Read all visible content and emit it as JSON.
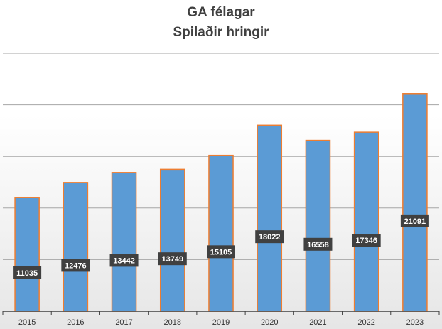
{
  "title_lines": [
    "GA félagar",
    "Spilaðir hringir"
  ],
  "chart_data": {
    "type": "bar",
    "title": "GA félagar Spilaðir hringir",
    "categories": [
      "2015",
      "2016",
      "2017",
      "2018",
      "2019",
      "2020",
      "2021",
      "2022",
      "2023"
    ],
    "values": [
      11035,
      12476,
      13442,
      13749,
      15105,
      18022,
      16558,
      17346,
      21091
    ],
    "xlabel": "",
    "ylabel": "",
    "ylim": [
      0,
      25000
    ],
    "grid": true,
    "legend": "none",
    "colors": {
      "bar_fill": "#5b9bd5",
      "bar_border": "#ed7d31",
      "label_bg": "#404040",
      "label_text": "#ffffff",
      "grid": "#a6a6a6",
      "axis": "#404040"
    }
  }
}
